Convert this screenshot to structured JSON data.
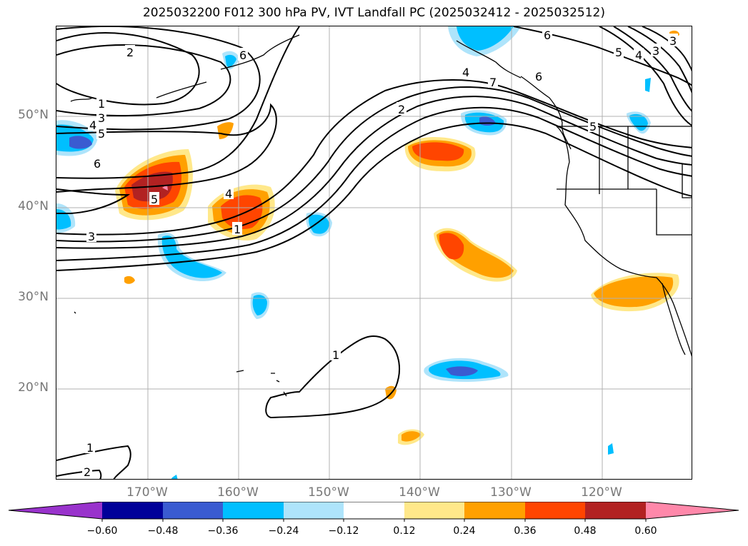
{
  "title": "2025032200 F012 300 hPa PV, IVT Landfall PC (2025032412 - 2025032512)",
  "axes": {
    "lat_labels": [
      "50°N",
      "40°N",
      "30°N",
      "20°N"
    ],
    "lon_labels": [
      "170°W",
      "160°W",
      "150°W",
      "140°W",
      "130°W",
      "120°W"
    ]
  },
  "contour_labels": [
    "2",
    "1",
    "3",
    "4",
    "5",
    "6",
    "3",
    "6",
    "2",
    "4",
    "6",
    "5",
    "4",
    "3",
    "4",
    "5",
    "3",
    "1",
    "1",
    "1",
    "2",
    "6",
    "5",
    "7"
  ],
  "colorbar": {
    "tick_labels": [
      "−0.60",
      "−0.48",
      "−0.36",
      "−0.24",
      "−0.12",
      "0.12",
      "0.24",
      "0.36",
      "0.48",
      "0.60"
    ],
    "colors": [
      "#9933cc",
      "#000099",
      "#3a5bd1",
      "#00bfff",
      "#aee4fb",
      "#ffffff",
      "#ffe88a",
      "#ffa000",
      "#ff4500",
      "#b22222",
      "#ff88aa"
    ]
  }
}
